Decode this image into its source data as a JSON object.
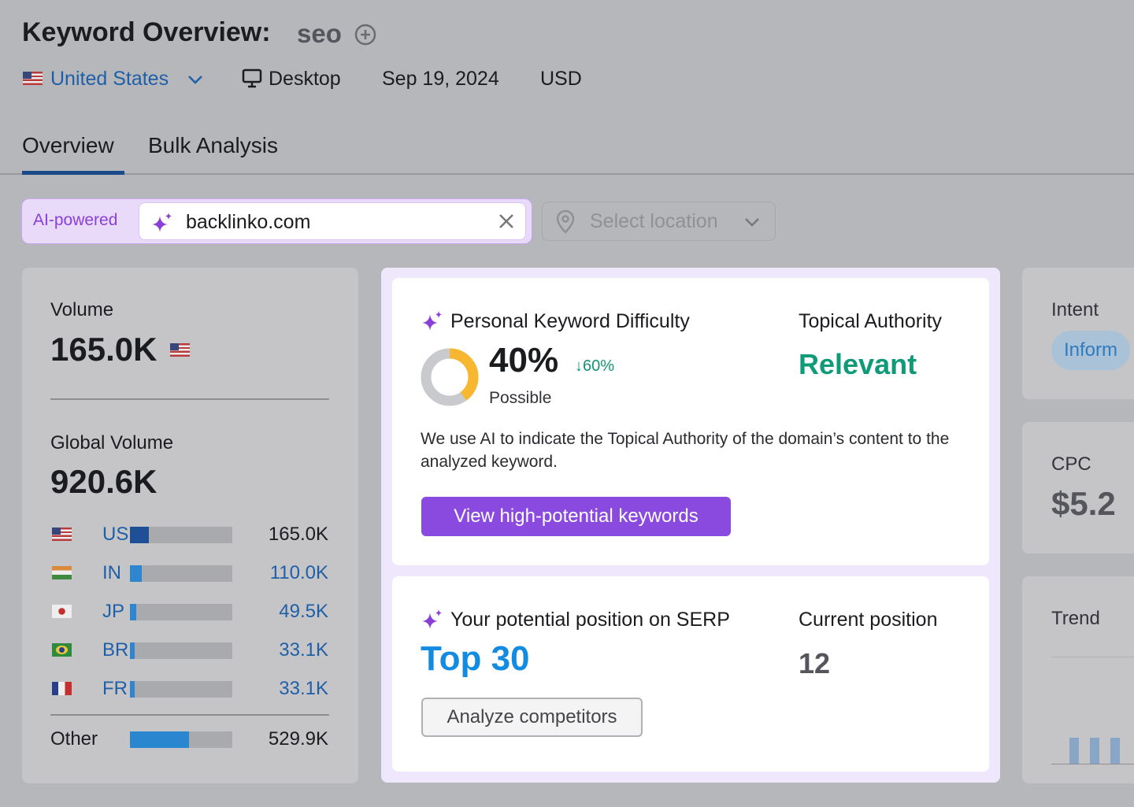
{
  "header": {
    "title": "Keyword Overview:",
    "keyword": "seo",
    "country": "United States",
    "device": "Desktop",
    "date": "Sep 19, 2024",
    "currency": "USD"
  },
  "tabs": [
    "Overview",
    "Bulk Analysis"
  ],
  "search": {
    "badge": "AI-powered",
    "domain": "backlinko.com",
    "location_placeholder": "Select location"
  },
  "volume": {
    "label": "Volume",
    "value": "165.0K",
    "global_label": "Global Volume",
    "global_value": "920.6K",
    "countries": [
      {
        "code": "US",
        "value": "165.0K"
      },
      {
        "code": "IN",
        "value": "110.0K"
      },
      {
        "code": "JP",
        "value": "49.5K"
      },
      {
        "code": "BR",
        "value": "33.1K"
      },
      {
        "code": "FR",
        "value": "33.1K"
      }
    ],
    "other": {
      "label": "Other",
      "value": "529.9K"
    }
  },
  "difficulty": {
    "title": "Personal Keyword Difficulty",
    "value": "40%",
    "change": "↓60%",
    "status": "Possible",
    "authority_label": "Topical Authority",
    "authority_value": "Relevant",
    "description": "We use AI to indicate the Topical Authority of the domain’s content to the analyzed keyword.",
    "button": "View high-potential keywords"
  },
  "serp": {
    "title": "Your potential position on SERP",
    "value": "Top 30",
    "current_label": "Current position",
    "current_value": "12",
    "button": "Analyze competitors"
  },
  "side": {
    "intent_label": "Intent",
    "intent_value": "Inform",
    "cpc_label": "CPC",
    "cpc_value": "$5.2",
    "trend_label": "Trend"
  }
}
